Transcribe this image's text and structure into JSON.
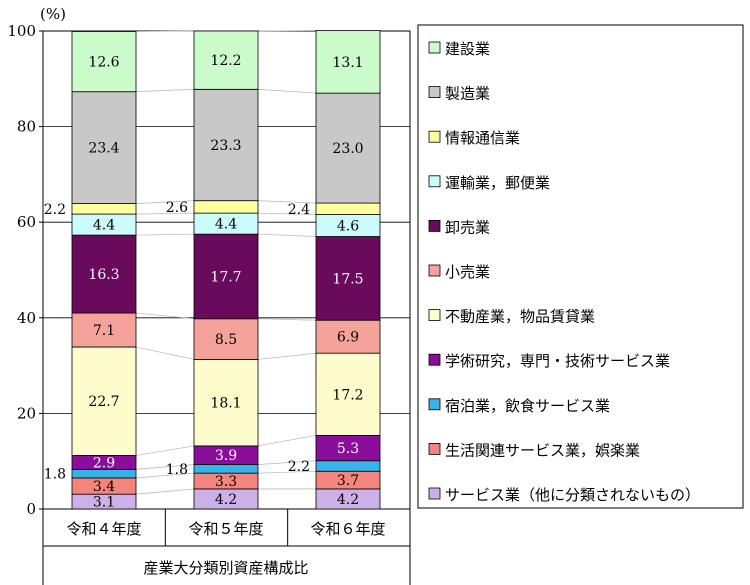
{
  "chart_data": {
    "type": "stacked-bar",
    "title": "産業大分類別資産構成比",
    "unit_label": "(%)",
    "xlabel": "産業大分類別資産構成比",
    "ylim": [
      0,
      100
    ],
    "yticks": [
      "0",
      "20",
      "40",
      "60",
      "80",
      "100"
    ],
    "categories": [
      "令和４年度",
      "令和５年度",
      "令和６年度"
    ],
    "series": [
      {
        "name": "サービス業（他に分類されないもの）",
        "color": "#cdb0e8",
        "values": [
          3.1,
          4.2,
          4.2
        ],
        "labels": [
          "3.1",
          "4.2",
          "4.2"
        ]
      },
      {
        "name": "生活関連サービス業，娯楽業",
        "color": "#f4857c",
        "values": [
          3.4,
          3.3,
          3.7
        ],
        "labels": [
          "3.4",
          "3.3",
          "3.7"
        ]
      },
      {
        "name": "宿泊業，飲食サービス業",
        "color": "#37b3ea",
        "values": [
          1.8,
          1.8,
          2.2
        ],
        "labels": [
          "1.8",
          "1.8",
          "2.2"
        ]
      },
      {
        "name": "学術研究，専門・技術サービス業",
        "color": "#8b0d9c",
        "values": [
          2.9,
          3.9,
          5.3
        ],
        "labels": [
          "2.9",
          "3.9",
          "5.3"
        ]
      },
      {
        "name": "不動産業，物品賃貸業",
        "color": "#fcfccc",
        "values": [
          22.7,
          18.1,
          17.2
        ],
        "labels": [
          "22.7",
          "18.1",
          "17.2"
        ]
      },
      {
        "name": "小売業",
        "color": "#f5a39a",
        "values": [
          7.1,
          8.5,
          6.9
        ],
        "labels": [
          "7.1",
          "8.5",
          "6.9"
        ]
      },
      {
        "name": "卸売業",
        "color": "#6a0a5c",
        "values": [
          16.3,
          17.7,
          17.5
        ],
        "labels": [
          "16.3",
          "17.7",
          "17.5"
        ]
      },
      {
        "name": "運輸業，郵便業",
        "color": "#ccfbfb",
        "values": [
          4.4,
          4.4,
          4.6
        ],
        "labels": [
          "4.4",
          "4.4",
          "4.6"
        ]
      },
      {
        "name": "情報通信業",
        "color": "#ffff9e",
        "values": [
          2.2,
          2.6,
          2.4
        ],
        "labels": [
          "2.2",
          "2.6",
          "2.4"
        ]
      },
      {
        "name": "製造業",
        "color": "#c8c8c8",
        "values": [
          23.4,
          23.3,
          23.0
        ],
        "labels": [
          "23.4",
          "23.3",
          "23.0"
        ]
      },
      {
        "name": "建設業",
        "color": "#ccfccc",
        "values": [
          12.6,
          12.2,
          13.1
        ],
        "labels": [
          "12.6",
          "12.2",
          "13.1"
        ]
      }
    ],
    "legend": [
      "建設業",
      "製造業",
      "情報通信業",
      "運輸業，郵便業",
      "卸売業",
      "小売業",
      "不動産業，物品賃貸業",
      "学術研究，専門・技術サービス業",
      "宿泊業，飲食サービス業",
      "生活関連サービス業，娯楽業",
      "サービス業（他に分類されないもの）"
    ],
    "legend_colors": [
      "#ccfccc",
      "#c8c8c8",
      "#ffff9e",
      "#ccfbfb",
      "#6a0a5c",
      "#f5a39a",
      "#fcfccc",
      "#8b0d9c",
      "#37b3ea",
      "#f4857c",
      "#cdb0e8"
    ]
  }
}
